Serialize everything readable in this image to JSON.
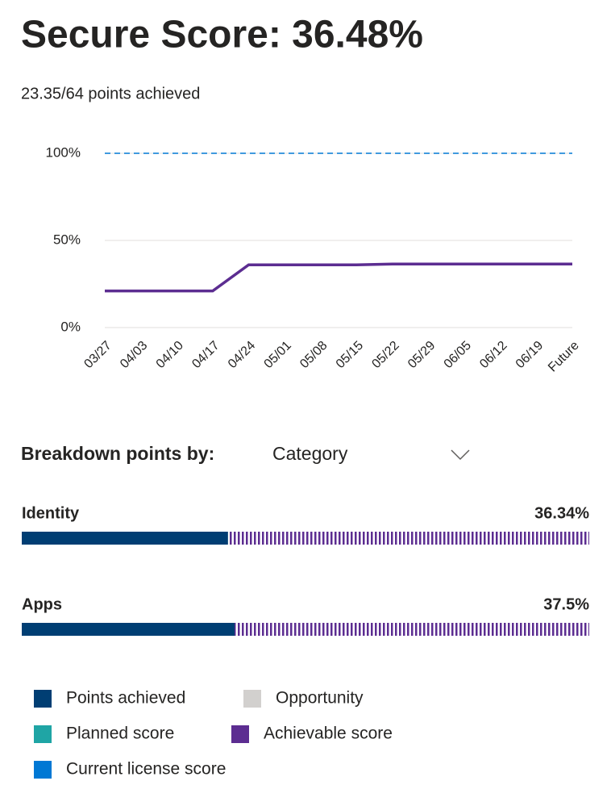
{
  "header": {
    "title": "Secure Score: 36.48%",
    "subtitle": "23.35/64 points achieved"
  },
  "chart_data": {
    "type": "line",
    "categories": [
      "03/27",
      "04/03",
      "04/10",
      "04/17",
      "04/24",
      "05/01",
      "05/08",
      "05/15",
      "05/22",
      "05/29",
      "06/05",
      "06/12",
      "06/19",
      "Future"
    ],
    "series": [
      {
        "name": "Current license score",
        "color": "#0078d4",
        "dashed": true,
        "values": [
          100,
          100,
          100,
          100,
          100,
          100,
          100,
          100,
          100,
          100,
          100,
          100,
          100,
          100
        ]
      },
      {
        "name": "Achievable score",
        "color": "#5c2d91",
        "dashed": false,
        "values": [
          21,
          21,
          21,
          21,
          36,
          36,
          36,
          36,
          36.48,
          36.48,
          36.48,
          36.48,
          36.48,
          36.48
        ]
      }
    ],
    "ylim": [
      0,
      100
    ],
    "yticks": [
      {
        "value": 0,
        "label": "0%"
      },
      {
        "value": 50,
        "label": "50%"
      },
      {
        "value": 100,
        "label": "100%"
      }
    ],
    "grid": true
  },
  "breakdown": {
    "label": "Breakdown points by:",
    "selected": "Category",
    "items": [
      {
        "name": "Identity",
        "value": 36.34,
        "value_label": "36.34%"
      },
      {
        "name": "Apps",
        "value": 37.5,
        "value_label": "37.5%"
      }
    ],
    "achieved_color": "#003e73",
    "remaining_color": "#5c2d91"
  },
  "legend": [
    {
      "name": "Points achieved",
      "color": "#003e73"
    },
    {
      "name": "Opportunity",
      "color": "#d2d0ce"
    },
    {
      "name": "Planned score",
      "color": "#1fa5a5"
    },
    {
      "name": "Achievable score",
      "color": "#5c2d91"
    },
    {
      "name": "Current license score",
      "color": "#0078d4"
    }
  ]
}
